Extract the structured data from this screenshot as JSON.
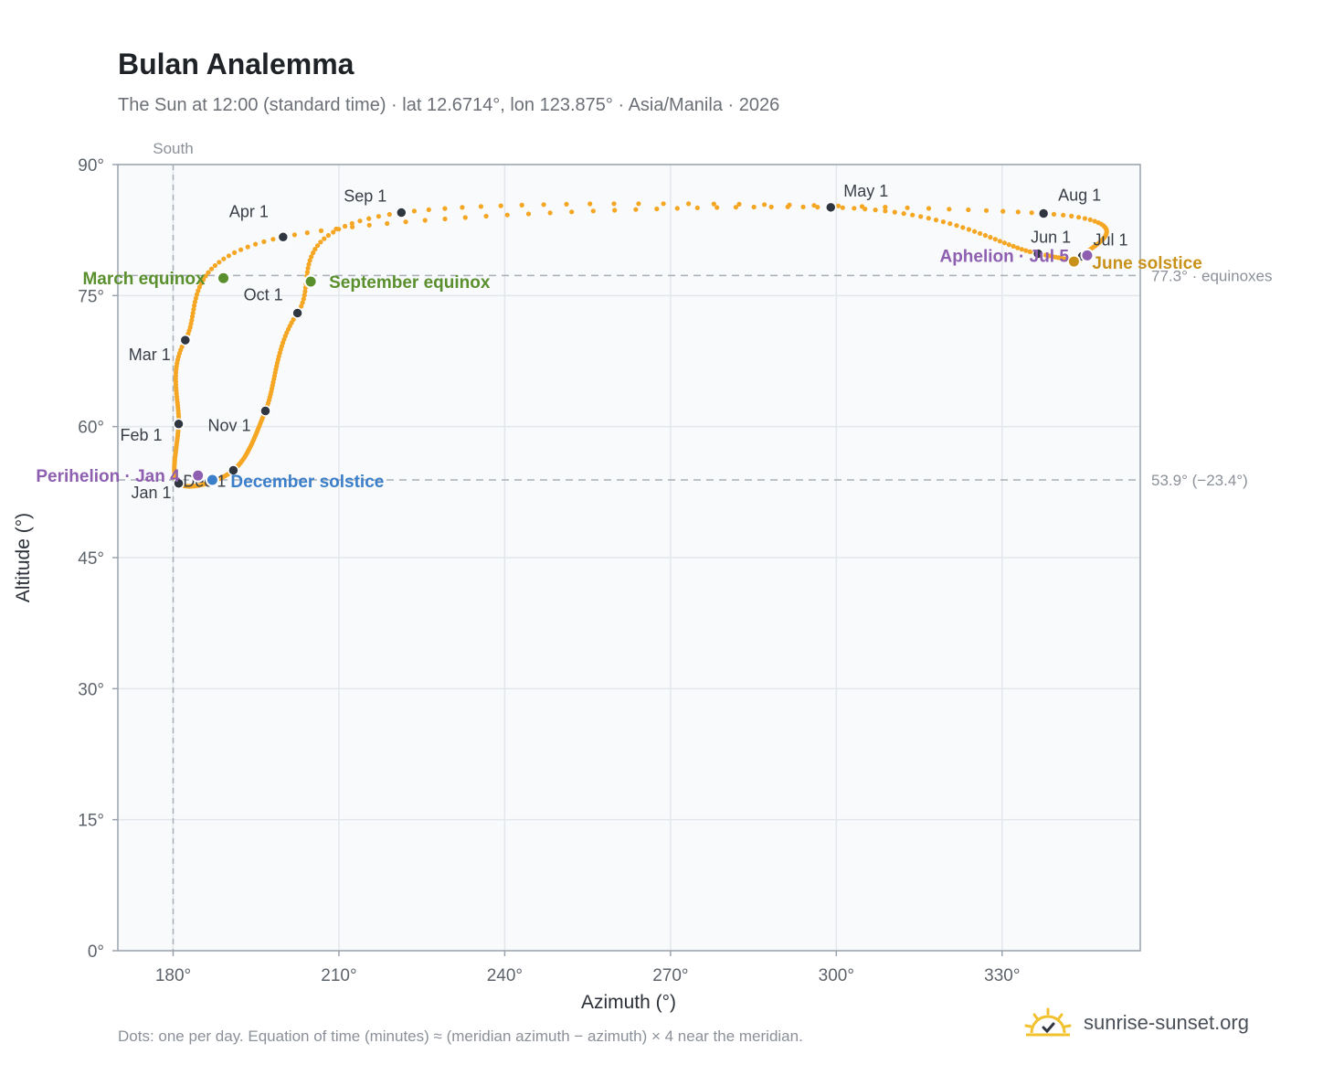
{
  "title": "Bulan Analemma",
  "subtitle": "The Sun at 12:00 (standard time) · lat 12.6714°, lon 123.875° · Asia/Manila · 2026",
  "footnote": "Dots: one per day. Equation of time (minutes) ≈ (meridian azimuth − azimuth) × 4 near the meridian.",
  "brand": {
    "text": "sunrise-sunset.org",
    "icon": "sunrise-logo-icon"
  },
  "colors": {
    "path": "#f5a623",
    "month_point": "#2f3640",
    "equinox": "#5a8f2e",
    "june_solstice": "#c8921a",
    "december_solstice": "#3b7ec9",
    "apsis": "#8e5fb0",
    "reference_line": "#a9b0b8",
    "plot_background": "#f8fafc",
    "grid": "#e3e7ec"
  },
  "chart_data": {
    "type": "scatter",
    "xlabel": "Azimuth (°)",
    "ylabel": "Altitude (°)",
    "xlim": [
      170,
      355
    ],
    "ylim": [
      0,
      90
    ],
    "x_ticks": [
      180,
      210,
      240,
      270,
      300,
      330
    ],
    "x_tick_labels": [
      "180°",
      "210°",
      "240°",
      "270°",
      "300°",
      "330°"
    ],
    "y_ticks": [
      0,
      15,
      30,
      45,
      60,
      75,
      90
    ],
    "y_tick_labels": [
      "0°",
      "15°",
      "30°",
      "45°",
      "60°",
      "75°",
      "90°"
    ],
    "grid": true,
    "reference_lines": [
      {
        "axis": "x",
        "value": 180,
        "label": "South"
      },
      {
        "axis": "y",
        "value": 77.3,
        "label": "77.3° · equinoxes"
      },
      {
        "axis": "y",
        "value": 53.9,
        "label": "53.9° (−23.4°)"
      }
    ],
    "month_points": [
      {
        "label": "Jan 1",
        "az": 181,
        "alt": 53.5
      },
      {
        "label": "Feb 1",
        "az": 181,
        "alt": 60.3
      },
      {
        "label": "Mar 1",
        "az": 182.2,
        "alt": 69.9
      },
      {
        "label": "Apr 1",
        "az": 199.9,
        "alt": 81.7
      },
      {
        "label": "May 1",
        "az": 299,
        "alt": 85.1
      },
      {
        "label": "Jun 1",
        "az": 336.5,
        "alt": 79.8
      },
      {
        "label": "Jul 1",
        "az": 344.5,
        "alt": 79.5
      },
      {
        "label": "Aug 1",
        "az": 337.5,
        "alt": 84.4
      },
      {
        "label": "Sep 1",
        "az": 221.3,
        "alt": 84.5
      },
      {
        "label": "Oct 1",
        "az": 202.5,
        "alt": 73.0
      },
      {
        "label": "Nov 1",
        "az": 196.7,
        "alt": 61.8
      },
      {
        "label": "Dec 1",
        "az": 190.9,
        "alt": 55.0
      }
    ],
    "events": [
      {
        "label": "March equinox",
        "az": 189.1,
        "alt": 77.0,
        "color": "equinox"
      },
      {
        "label": "September equinox",
        "az": 204.9,
        "alt": 76.6,
        "color": "equinox"
      },
      {
        "label": "June solstice",
        "az": 343.0,
        "alt": 78.9,
        "color": "june_solstice"
      },
      {
        "label": "December solstice",
        "az": 187.1,
        "alt": 53.9,
        "color": "december_solstice"
      },
      {
        "label": "Perihelion · Jan 4",
        "az": 184.5,
        "alt": 54.4,
        "color": "apsis"
      },
      {
        "label": "Aphelion · Jul 5",
        "az": 345.4,
        "alt": 79.6,
        "color": "apsis"
      }
    ]
  }
}
